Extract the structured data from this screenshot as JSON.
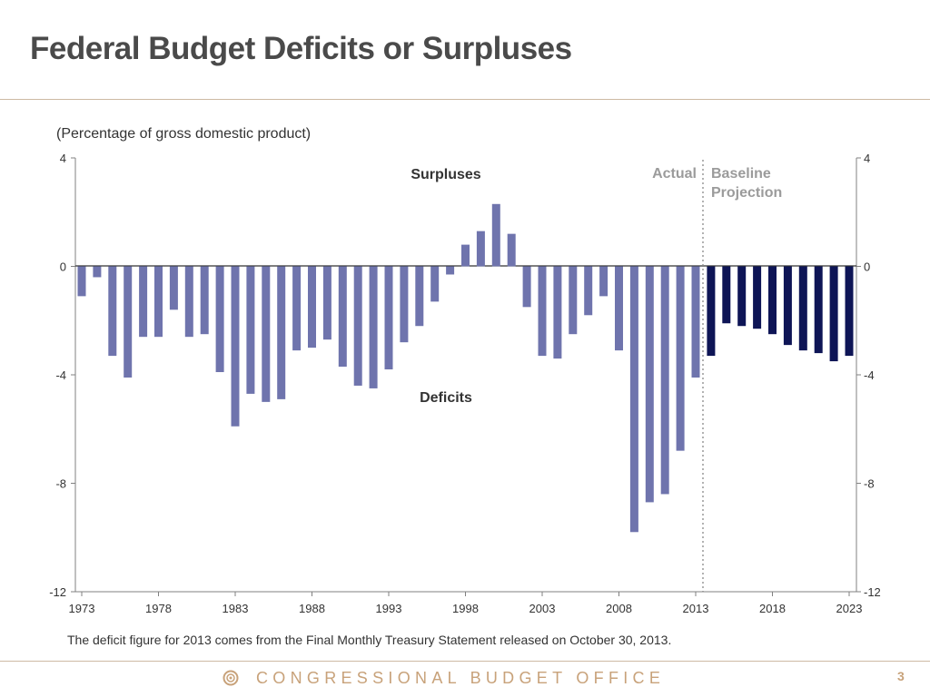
{
  "slide": {
    "title": "Federal Budget Deficits or Surpluses",
    "footnote": "The deficit figure for 2013 comes from the Final Monthly Treasury Statement released on October 30, 2013.",
    "footer_org": "CONGRESSIONAL BUDGET OFFICE",
    "page_number": "3"
  },
  "colors": {
    "actual": "#6f74ad",
    "projection": "#0e1556",
    "accent": "#c8a27a",
    "rule": "#cdb9a3"
  },
  "chart_data": {
    "type": "bar",
    "title": "Federal Budget Deficits or Surpluses",
    "ylabel": "(Percentage of gross domestic product)",
    "xlabel": "",
    "ylim": [
      -12,
      4
    ],
    "yticks": [
      4,
      0,
      -4,
      -8,
      -12
    ],
    "xtick_years": [
      1973,
      1978,
      1983,
      1988,
      1993,
      1998,
      2003,
      2008,
      2013,
      2018,
      2023
    ],
    "grid": false,
    "annotations": {
      "surpluses": "Surpluses",
      "deficits": "Deficits",
      "actual": "Actual",
      "projection_line1": "Baseline",
      "projection_line2": "Projection"
    },
    "series": [
      {
        "name": "Actual",
        "years": [
          1973,
          1974,
          1975,
          1976,
          1977,
          1978,
          1979,
          1980,
          1981,
          1982,
          1983,
          1984,
          1985,
          1986,
          1987,
          1988,
          1989,
          1990,
          1991,
          1992,
          1993,
          1994,
          1995,
          1996,
          1997,
          1998,
          1999,
          2000,
          2001,
          2002,
          2003,
          2004,
          2005,
          2006,
          2007,
          2008,
          2009,
          2010,
          2011,
          2012,
          2013
        ],
        "values": [
          -1.1,
          -0.4,
          -3.3,
          -4.1,
          -2.6,
          -2.6,
          -1.6,
          -2.6,
          -2.5,
          -3.9,
          -5.9,
          -4.7,
          -5.0,
          -4.9,
          -3.1,
          -3.0,
          -2.7,
          -3.7,
          -4.4,
          -4.5,
          -3.8,
          -2.8,
          -2.2,
          -1.3,
          -0.3,
          0.8,
          1.3,
          2.3,
          1.2,
          -1.5,
          -3.3,
          -3.4,
          -2.5,
          -1.8,
          -1.1,
          -3.1,
          -9.8,
          -8.7,
          -8.4,
          -6.8,
          -4.1
        ]
      },
      {
        "name": "Baseline Projection",
        "years": [
          2014,
          2015,
          2016,
          2017,
          2018,
          2019,
          2020,
          2021,
          2022,
          2023
        ],
        "values": [
          -3.3,
          -2.1,
          -2.2,
          -2.3,
          -2.5,
          -2.9,
          -3.1,
          -3.2,
          -3.5,
          -3.3
        ]
      }
    ]
  }
}
